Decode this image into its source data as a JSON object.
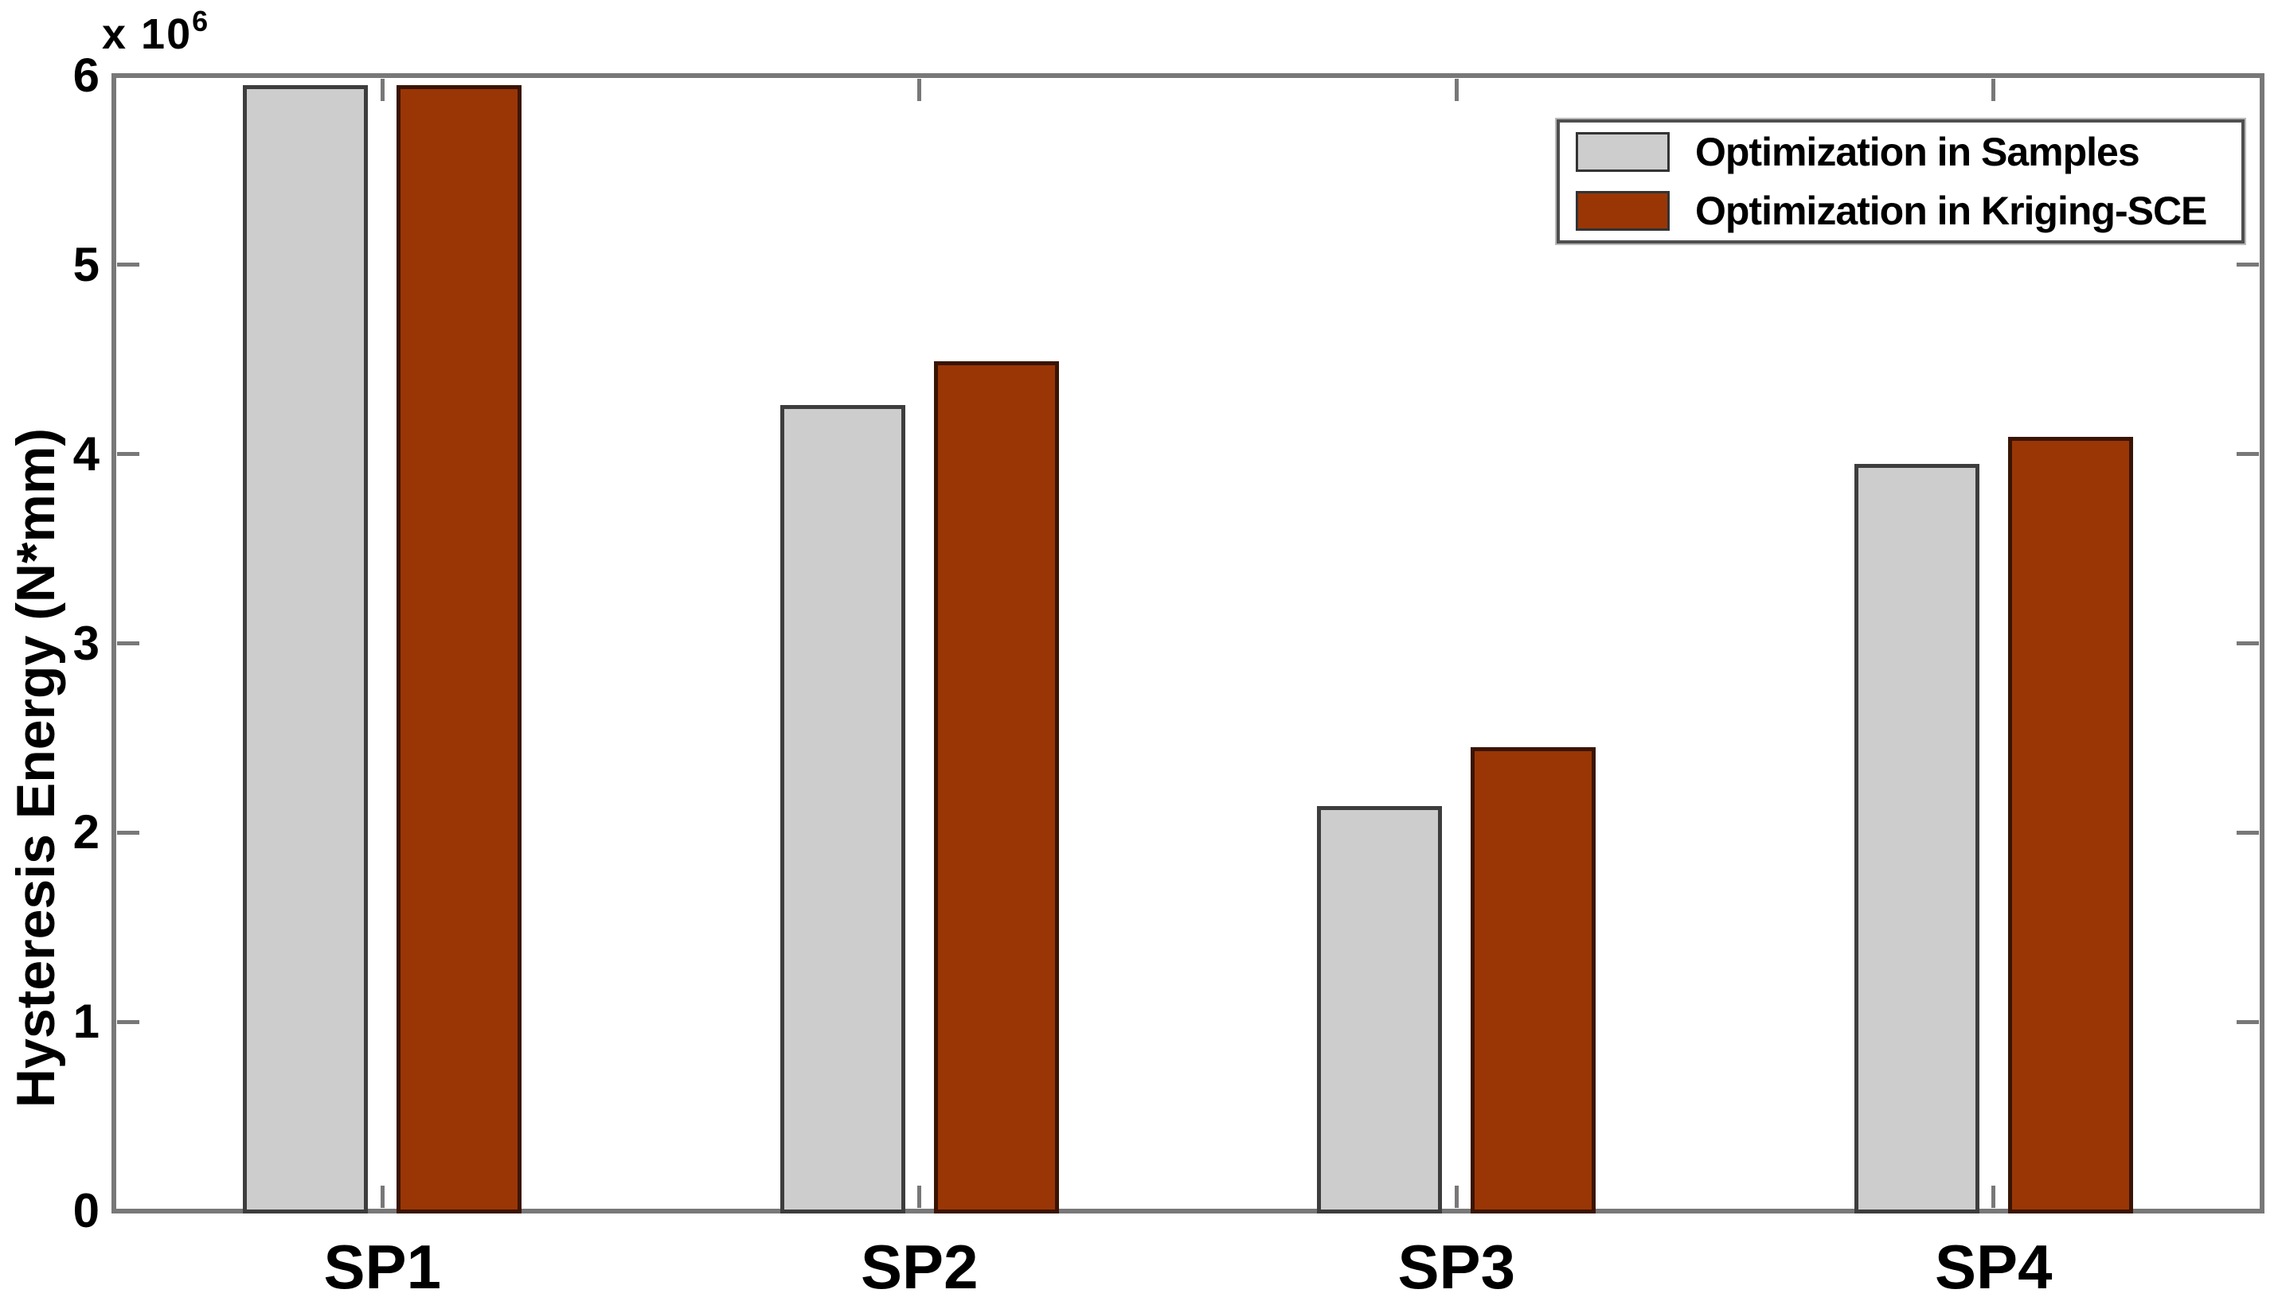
{
  "figure": {
    "background": "#ffffff",
    "axis_color": "#787878",
    "text_color": "#000000",
    "offset_label": "x 10",
    "offset_power": "6"
  },
  "chart_data": {
    "type": "bar",
    "title": "",
    "xlabel": "",
    "ylabel": "Hysteresis Energy (N*mm)",
    "categories": [
      "SP1",
      "SP2",
      "SP3",
      "SP4"
    ],
    "series": [
      {
        "name": "Optimization in Samples",
        "color": "#cdcdcd",
        "edge_color": "#3d3d3d",
        "values_x1e6": [
          5.95,
          4.26,
          2.14,
          3.95
        ]
      },
      {
        "name": "Optimization in Kriging-SCE",
        "color": "#9a3606",
        "edge_color": "#3a1403",
        "values_x1e6": [
          5.95,
          4.49,
          2.45,
          4.09
        ]
      }
    ],
    "y_unit_multiplier": 1000000,
    "ylim": [
      0,
      6000000
    ],
    "yticks": [
      0,
      1,
      2,
      3,
      4,
      5,
      6
    ],
    "grid": false,
    "legend_position": "top-right"
  }
}
